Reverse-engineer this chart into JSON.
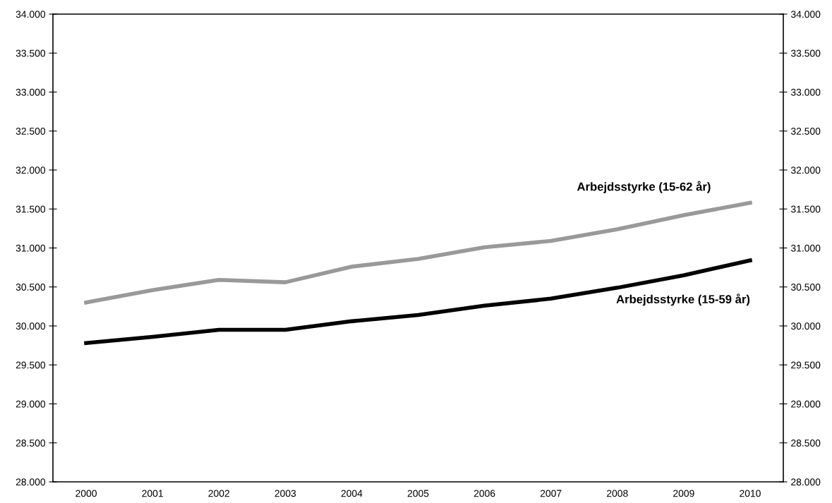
{
  "chart_data": {
    "type": "line",
    "categories": [
      "2000",
      "2001",
      "2002",
      "2003",
      "2004",
      "2005",
      "2006",
      "2007",
      "2008",
      "2009",
      "2010"
    ],
    "series": [
      {
        "name": "Arbejdsstyrke (15-62 år)",
        "color": "#999999",
        "values": [
          30300,
          30460,
          30590,
          30560,
          30760,
          30860,
          31010,
          31090,
          31240,
          31420,
          31580
        ]
      },
      {
        "name": "Arbejdsstyrke (15-59 år)",
        "color": "#000000",
        "values": [
          29780,
          29860,
          29950,
          29950,
          30060,
          30140,
          30260,
          30350,
          30490,
          30650,
          30840
        ]
      }
    ],
    "ylim": [
      28000,
      34000
    ],
    "yticks": [
      {
        "value": 28000,
        "label": "28.000"
      },
      {
        "value": 28500,
        "label": "28.500"
      },
      {
        "value": 29000,
        "label": "29.000"
      },
      {
        "value": 29500,
        "label": "29.500"
      },
      {
        "value": 30000,
        "label": "30.000"
      },
      {
        "value": 30500,
        "label": "30.500"
      },
      {
        "value": 31000,
        "label": "31.000"
      },
      {
        "value": 31500,
        "label": "31.500"
      },
      {
        "value": 32000,
        "label": "32.000"
      },
      {
        "value": 32500,
        "label": "32.500"
      },
      {
        "value": 33000,
        "label": "33.000"
      },
      {
        "value": 33500,
        "label": "33.500"
      },
      {
        "value": 34000,
        "label": "34.000"
      }
    ],
    "y2lim": [
      28000,
      34000
    ],
    "y2ticks": [
      {
        "value": 28000,
        "label": "28.000"
      },
      {
        "value": 28500,
        "label": "28.500"
      },
      {
        "value": 29000,
        "label": "29.000"
      },
      {
        "value": 29500,
        "label": "29.500"
      },
      {
        "value": 30000,
        "label": "30.000"
      },
      {
        "value": 30500,
        "label": "30.500"
      },
      {
        "value": 31000,
        "label": "31.000"
      },
      {
        "value": 31500,
        "label": "31.500"
      },
      {
        "value": 32000,
        "label": "32.000"
      },
      {
        "value": 32500,
        "label": "32.500"
      },
      {
        "value": 33000,
        "label": "33.000"
      },
      {
        "value": 33500,
        "label": "33.500"
      },
      {
        "value": 34000,
        "label": "34.000"
      }
    ],
    "grid": false,
    "legend": false,
    "marker": "none",
    "line_style": "solid"
  }
}
